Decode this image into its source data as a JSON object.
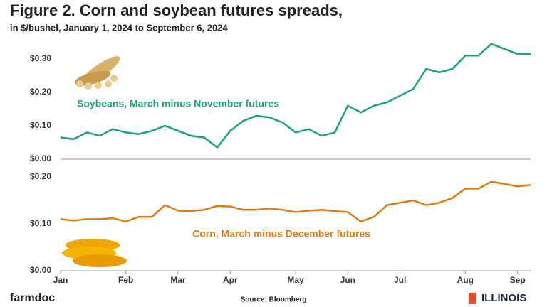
{
  "title": "Figure 2. Corn and soybean futures spreads,",
  "subtitle": "in $/bushel, January 1, 2024 to September 6, 2024",
  "footer_left": "farmdoc",
  "source": "Source: Bloomberg",
  "footer_right": "ILLINOIS",
  "chart_data": [
    {
      "type": "line",
      "annotation": "Soybeans, March minus November futures",
      "color": "#1aa37a",
      "values": [
        0.065,
        0.06,
        0.08,
        0.07,
        0.09,
        0.08,
        0.075,
        0.085,
        0.1,
        0.085,
        0.07,
        0.065,
        0.035,
        0.085,
        0.115,
        0.13,
        0.125,
        0.11,
        0.08,
        0.09,
        0.07,
        0.08,
        0.16,
        0.14,
        0.16,
        0.17,
        0.19,
        0.21,
        0.27,
        0.26,
        0.27,
        0.31,
        0.31,
        0.345,
        0.33,
        0.315,
        0.315
      ],
      "ylim": [
        0,
        0.35
      ],
      "yticks": [
        {
          "value": 0,
          "label": "$0.00"
        },
        {
          "value": 0.1,
          "label": "$0.10"
        },
        {
          "value": 0.2,
          "label": "$0.20"
        },
        {
          "value": 0.3,
          "label": "$0.30"
        }
      ],
      "grid": false
    },
    {
      "type": "line",
      "annotation": "Corn, March minus December futures",
      "color": "#e07b14",
      "categories": [
        "Jan",
        null,
        null,
        null,
        null,
        "Feb",
        null,
        null,
        null,
        "Mar",
        null,
        null,
        null,
        "Apr",
        null,
        null,
        null,
        null,
        "May",
        null,
        null,
        null,
        "Jun",
        null,
        null,
        null,
        "Jul",
        null,
        null,
        null,
        null,
        "Aug",
        null,
        null,
        null,
        "Sep",
        null
      ],
      "values": [
        0.11,
        0.107,
        0.11,
        0.11,
        0.112,
        0.105,
        0.115,
        0.115,
        0.14,
        0.128,
        0.127,
        0.13,
        0.138,
        0.137,
        0.13,
        0.13,
        0.133,
        0.13,
        0.125,
        0.128,
        0.13,
        0.127,
        0.125,
        0.105,
        0.115,
        0.14,
        0.145,
        0.15,
        0.14,
        0.145,
        0.155,
        0.175,
        0.175,
        0.19,
        0.185,
        0.18,
        0.183
      ],
      "ylim": [
        0,
        0.21
      ],
      "yticks": [
        {
          "value": 0,
          "label": "$0.00"
        },
        {
          "value": 0.1,
          "label": "$0.10"
        },
        {
          "value": 0.2,
          "label": "$0.20"
        }
      ],
      "grid": false
    }
  ]
}
